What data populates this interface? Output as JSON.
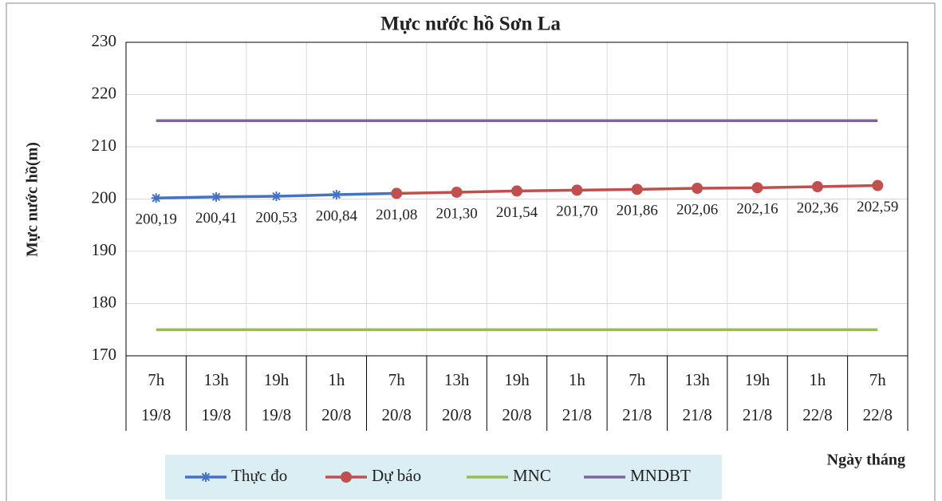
{
  "chart_data": {
    "type": "line",
    "title": "Mực nước hồ Sơn La",
    "y_label": "Mực nước hồ(m)",
    "x_label": "Ngày tháng",
    "categories": [
      [
        "7h",
        "19/8"
      ],
      [
        "13h",
        "19/8"
      ],
      [
        "19h",
        "19/8"
      ],
      [
        "1h",
        "20/8"
      ],
      [
        "7h",
        "20/8"
      ],
      [
        "13h",
        "20/8"
      ],
      [
        "19h",
        "20/8"
      ],
      [
        "1h",
        "21/8"
      ],
      [
        "7h",
        "21/8"
      ],
      [
        "13h",
        "21/8"
      ],
      [
        "19h",
        "21/8"
      ],
      [
        "1h",
        "22/8"
      ],
      [
        "7h",
        "22/8"
      ]
    ],
    "series": [
      {
        "name": "Thực đo",
        "color": "#4472c4",
        "marker": "asterisk",
        "values": [
          200.19,
          200.41,
          200.53,
          200.84,
          201.08,
          null,
          null,
          null,
          null,
          null,
          null,
          null,
          null
        ],
        "value_labels": [
          "200,19",
          "200,41",
          "200,53",
          "200,84",
          null,
          null,
          null,
          null,
          null,
          null,
          null,
          null,
          null
        ]
      },
      {
        "name": "Dự báo",
        "color": "#c0504d",
        "marker": "circle",
        "values": [
          null,
          null,
          null,
          null,
          201.08,
          201.3,
          201.54,
          201.7,
          201.86,
          202.06,
          202.16,
          202.36,
          202.59
        ],
        "value_labels": [
          null,
          null,
          null,
          null,
          "201,08",
          "201,30",
          "201,54",
          "201,70",
          "201,86",
          "202,06",
          "202,16",
          "202,36",
          "202,59"
        ]
      },
      {
        "name": "MNC",
        "color": "#9bbb59",
        "values": [
          175,
          175,
          175,
          175,
          175,
          175,
          175,
          175,
          175,
          175,
          175,
          175,
          175
        ]
      },
      {
        "name": "MNDBT",
        "color": "#8064a2",
        "values": [
          215,
          215,
          215,
          215,
          215,
          215,
          215,
          215,
          215,
          215,
          215,
          215,
          215
        ]
      }
    ],
    "ylim": [
      170,
      230
    ],
    "yticks": [
      170,
      180,
      190,
      200,
      210,
      220,
      230
    ],
    "grid": true,
    "legend": "bottom"
  }
}
